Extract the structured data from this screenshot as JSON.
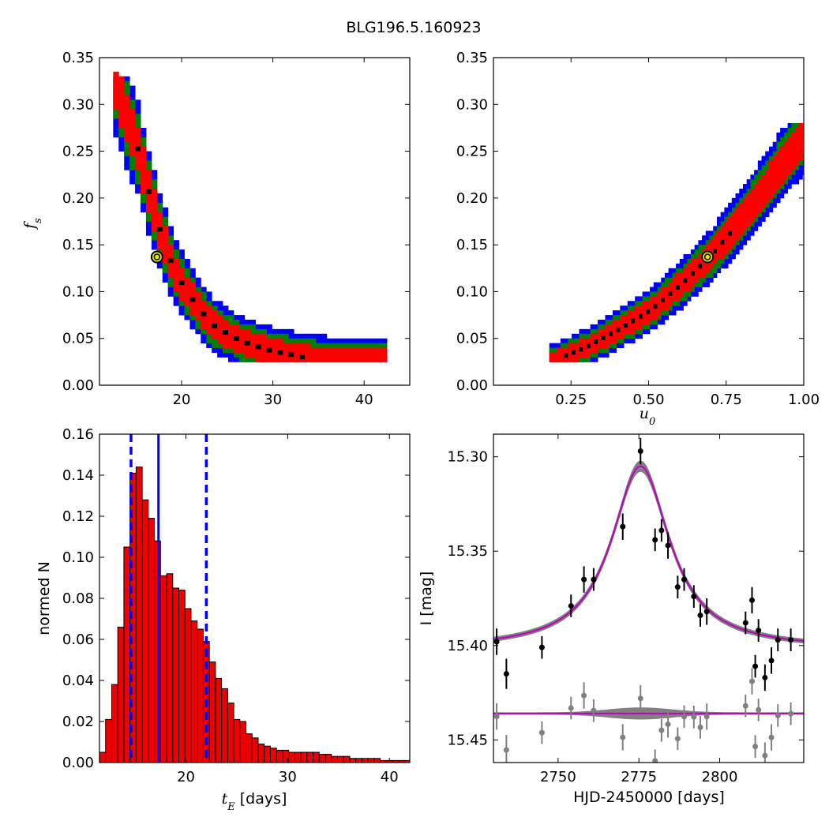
{
  "title": "BLG196.5.160923",
  "colors": {
    "inner": "#ff0000",
    "mid": "#008000",
    "outer": "#0000ff",
    "peak": "#000000",
    "marker_edge": "#000000",
    "marker_fill": "#e6e600",
    "bar_fill": "#ee0000",
    "model": "#bf00bf",
    "band": "#808080",
    "resid": "#808080"
  },
  "chart_data": [
    {
      "id": "fs-vs-tE",
      "type": "heatmap",
      "xlim": [
        11,
        45
      ],
      "ylim": [
        0,
        0.35
      ],
      "xticks": [
        "20",
        "30",
        "40"
      ],
      "xtick_values": [
        20,
        30,
        40
      ],
      "yticks": [
        "0.00",
        "0.05",
        "0.10",
        "0.15",
        "0.20",
        "0.25",
        "0.30",
        "0.35"
      ],
      "ytick_values": [
        0,
        0.05,
        0.1,
        0.15,
        0.2,
        0.25,
        0.3,
        0.35
      ],
      "ylabel_main": "f",
      "ylabel_sub": "s",
      "marker": [
        17.3,
        0.137
      ],
      "ridge": [
        [
          12.5,
          0.325
        ],
        [
          13.5,
          0.29
        ],
        [
          15,
          0.25
        ],
        [
          16,
          0.21
        ],
        [
          17.5,
          0.16
        ],
        [
          19,
          0.12
        ],
        [
          21,
          0.09
        ],
        [
          23,
          0.065
        ],
        [
          26,
          0.048
        ],
        [
          29,
          0.038
        ],
        [
          33,
          0.03
        ],
        [
          38,
          0.026
        ],
        [
          42,
          0.025
        ]
      ]
    },
    {
      "id": "fs-vs-u0",
      "type": "heatmap",
      "xlim": [
        0,
        1.0
      ],
      "ylim": [
        0,
        0.35
      ],
      "xticks": [
        "0.25",
        "0.50",
        "0.75",
        "1.00"
      ],
      "xtick_values": [
        0.25,
        0.5,
        0.75,
        1.0
      ],
      "yticks": [
        "0.00",
        "0.05",
        "0.10",
        "0.15",
        "0.20",
        "0.25",
        "0.30",
        "0.35"
      ],
      "ytick_values": [
        0,
        0.05,
        0.1,
        0.15,
        0.2,
        0.25,
        0.3,
        0.35
      ],
      "xlabel_main": "u",
      "xlabel_sub": "0",
      "marker": [
        0.69,
        0.137
      ],
      "ridge": [
        [
          0.18,
          0.025
        ],
        [
          0.3,
          0.042
        ],
        [
          0.4,
          0.06
        ],
        [
          0.5,
          0.08
        ],
        [
          0.6,
          0.108
        ],
        [
          0.7,
          0.14
        ],
        [
          0.8,
          0.18
        ],
        [
          0.9,
          0.225
        ],
        [
          1.0,
          0.27
        ]
      ]
    },
    {
      "id": "tE-histogram",
      "type": "bar",
      "xlim": [
        11.5,
        42
      ],
      "ylim": [
        0,
        0.16
      ],
      "xticks": [
        "20",
        "30",
        "40"
      ],
      "xtick_values": [
        20,
        30,
        40
      ],
      "yticks": [
        "0.00",
        "0.02",
        "0.04",
        "0.06",
        "0.08",
        "0.10",
        "0.12",
        "0.14",
        "0.16"
      ],
      "ytick_values": [
        0,
        0.02,
        0.04,
        0.06,
        0.08,
        0.1,
        0.12,
        0.14,
        0.16
      ],
      "xlabel_main": "t",
      "xlabel_sub": "E",
      "xlabel_rest": " [days]",
      "ylabel": "normed N",
      "bin_start": 11.5,
      "bin_width": 0.6,
      "values": [
        0.005,
        0.021,
        0.038,
        0.066,
        0.105,
        0.141,
        0.144,
        0.128,
        0.119,
        0.108,
        0.091,
        0.092,
        0.085,
        0.084,
        0.075,
        0.069,
        0.065,
        0.059,
        0.049,
        0.041,
        0.036,
        0.029,
        0.021,
        0.02,
        0.014,
        0.012,
        0.009,
        0.008,
        0.007,
        0.006,
        0.006,
        0.005,
        0.005,
        0.005,
        0.005,
        0.005,
        0.004,
        0.004,
        0.003,
        0.003,
        0.003,
        0.002,
        0.002,
        0.002,
        0.002,
        0.002,
        0.001,
        0.001,
        0.001,
        0.001,
        0.001
      ],
      "median": 17.3,
      "bounds": [
        14.6,
        22.0
      ]
    },
    {
      "id": "light-curve",
      "type": "scatter",
      "xlim": [
        2730,
        2826
      ],
      "ylim": [
        15.462,
        15.288
      ],
      "xticks": [
        "2750",
        "2775",
        "2800"
      ],
      "xtick_values": [
        2750,
        2775,
        2800
      ],
      "yticks": [
        "15.30",
        "15.35",
        "15.40",
        "15.45"
      ],
      "ytick_values": [
        15.3,
        15.35,
        15.4,
        15.45
      ],
      "xlabel": "HJD-2450000 [days]",
      "ylabel": "I [mag]",
      "model": {
        "t0": 2775.5,
        "tau": 11.8,
        "baseline": 15.402,
        "peak": 15.305
      },
      "resid_baseline": 15.436,
      "points": [
        [
          2731,
          15.398,
          0.007
        ],
        [
          2734,
          15.415,
          0.008
        ],
        [
          2745,
          15.401,
          0.006
        ],
        [
          2754,
          15.379,
          0.006
        ],
        [
          2758,
          15.365,
          0.007
        ],
        [
          2761,
          15.365,
          0.006
        ],
        [
          2770,
          15.337,
          0.007
        ],
        [
          2775.5,
          15.297,
          0.007
        ],
        [
          2780,
          15.344,
          0.006
        ],
        [
          2782,
          15.339,
          0.006
        ],
        [
          2784,
          15.347,
          0.007
        ],
        [
          2787,
          15.369,
          0.006
        ],
        [
          2789,
          15.365,
          0.006
        ],
        [
          2792,
          15.374,
          0.006
        ],
        [
          2794,
          15.384,
          0.006
        ],
        [
          2796,
          15.382,
          0.007
        ],
        [
          2808,
          15.388,
          0.006
        ],
        [
          2810,
          15.376,
          0.007
        ],
        [
          2811,
          15.411,
          0.006
        ],
        [
          2812,
          15.392,
          0.006
        ],
        [
          2814,
          15.417,
          0.007
        ],
        [
          2816,
          15.408,
          0.007
        ],
        [
          2818,
          15.397,
          0.006
        ],
        [
          2822,
          15.397,
          0.006
        ]
      ]
    }
  ]
}
